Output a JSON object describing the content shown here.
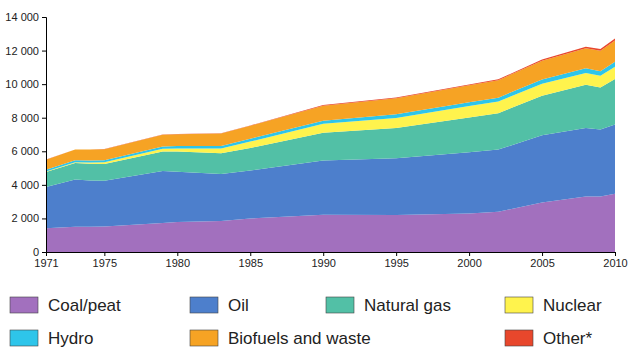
{
  "chart_data": {
    "type": "area",
    "stacked": true,
    "legend": "bottom",
    "x": [
      1971,
      1973,
      1974,
      1975,
      1979,
      1980,
      1983,
      1985,
      1990,
      1995,
      2000,
      2002,
      2005,
      2008,
      2009,
      2010
    ],
    "xlim": [
      1971,
      2010
    ],
    "xticks": [
      1971,
      1975,
      1980,
      1985,
      1990,
      1995,
      2000,
      2005,
      2010
    ],
    "ylim": [
      0,
      14000
    ],
    "yticks": [
      0,
      {
        "value": 2000,
        "label": "2 000"
      },
      {
        "value": 4000,
        "label": "4 000"
      },
      {
        "value": 6000,
        "label": "6 000"
      },
      {
        "value": 8000,
        "label": "8 000"
      },
      {
        "value": 10000,
        "label": "10 000"
      },
      {
        "value": 12000,
        "label": "12 000"
      },
      {
        "value": 14000,
        "label": "14 000"
      }
    ],
    "series": [
      {
        "name": "Coal/peat",
        "color": "#a270be",
        "values": [
          1420,
          1500,
          1500,
          1520,
          1730,
          1780,
          1850,
          2000,
          2220,
          2200,
          2300,
          2400,
          2950,
          3300,
          3300,
          3470
        ]
      },
      {
        "name": "Oil",
        "color": "#4d7fcc",
        "values": [
          2450,
          2815,
          2760,
          2720,
          3100,
          3000,
          2800,
          2850,
          3230,
          3380,
          3650,
          3700,
          4000,
          4080,
          4000,
          4120
        ]
      },
      {
        "name": "Natural gas",
        "color": "#52c0a6",
        "values": [
          900,
          980,
          1000,
          1000,
          1150,
          1200,
          1240,
          1350,
          1660,
          1800,
          2070,
          2170,
          2360,
          2580,
          2500,
          2720
        ]
      },
      {
        "name": "Nuclear",
        "color": "#fff34d",
        "values": [
          30,
          55,
          75,
          100,
          170,
          185,
          270,
          380,
          525,
          610,
          675,
          695,
          720,
          710,
          700,
          725
        ]
      },
      {
        "name": "Hydro",
        "color": "#2ec5ea",
        "values": [
          100,
          110,
          120,
          125,
          140,
          145,
          160,
          165,
          185,
          210,
          225,
          230,
          250,
          275,
          275,
          295
        ]
      },
      {
        "name": "Biofuels and waste",
        "color": "#f6a324",
        "values": [
          600,
          640,
          650,
          660,
          700,
          710,
          740,
          770,
          900,
          960,
          1010,
          1040,
          1120,
          1200,
          1220,
          1270
        ]
      },
      {
        "name": "Other*",
        "color": "#e8472c",
        "values": [
          5,
          6,
          6,
          7,
          8,
          9,
          15,
          25,
          35,
          40,
          50,
          55,
          65,
          90,
          100,
          115
        ]
      }
    ]
  }
}
